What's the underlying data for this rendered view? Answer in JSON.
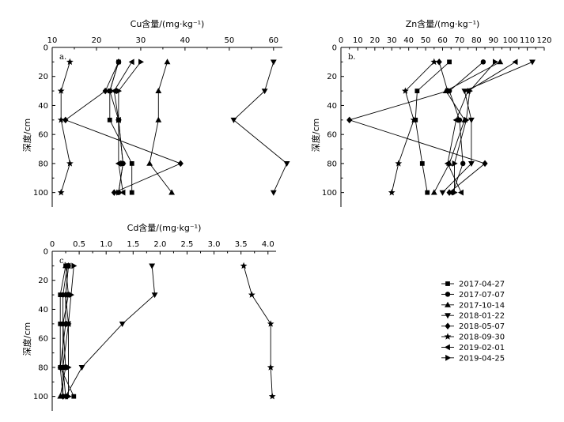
{
  "legend": [
    {
      "label": "2017-04-27",
      "marker": "square"
    },
    {
      "label": "2017-07-07",
      "marker": "circle"
    },
    {
      "label": "2017-10-14",
      "marker": "triangle-up"
    },
    {
      "label": "2018-01-22",
      "marker": "triangle-down"
    },
    {
      "label": "2018-05-07",
      "marker": "diamond"
    },
    {
      "label": "2018-09-30",
      "marker": "star"
    },
    {
      "label": "2019-02-01",
      "marker": "triangle-left"
    },
    {
      "label": "2019-04-25",
      "marker": "triangle-right"
    }
  ],
  "chart_data": [
    {
      "type": "line",
      "panel": "a.",
      "title": "Cu含量/(mg·kg⁻¹)",
      "ylabel": "深度/cm",
      "xlim": [
        10,
        62
      ],
      "ylim": [
        0,
        110
      ],
      "xticks": [
        10,
        20,
        30,
        40,
        50,
        60
      ],
      "yticks": [
        0,
        20,
        40,
        60,
        80,
        100
      ],
      "x_axis_position": "top",
      "depths": [
        10,
        30,
        50,
        80,
        100
      ],
      "series": [
        {
          "name": "2017-04-27",
          "values": [
            25,
            23,
            23,
            28,
            28
          ]
        },
        {
          "name": "2017-07-07",
          "values": [
            25,
            23,
            25,
            26,
            25
          ]
        },
        {
          "name": "2017-10-14",
          "values": [
            36,
            34,
            34,
            32,
            37
          ]
        },
        {
          "name": "2018-01-22",
          "values": [
            60,
            58,
            51,
            63,
            60
          ]
        },
        {
          "name": "2018-05-07",
          "values": [
            25,
            22,
            13,
            39,
            24
          ]
        },
        {
          "name": "2018-09-30",
          "values": [
            14,
            12,
            12,
            14,
            12
          ]
        },
        {
          "name": "2019-02-01",
          "values": [
            28,
            24,
            25,
            25,
            26
          ]
        },
        {
          "name": "2019-04-25",
          "values": [
            30,
            25,
            25,
            26,
            25
          ]
        }
      ]
    },
    {
      "type": "line",
      "panel": "b.",
      "title": "Zn含量/(mg·kg⁻¹)",
      "ylabel": "深度/cm",
      "xlim": [
        0,
        120
      ],
      "ylim": [
        0,
        110
      ],
      "xticks": [
        0,
        10,
        20,
        30,
        40,
        50,
        60,
        70,
        80,
        90,
        100,
        110,
        120
      ],
      "yticks": [
        0,
        20,
        40,
        60,
        80,
        100
      ],
      "x_axis_position": "top",
      "depths": [
        10,
        30,
        50,
        80,
        100
      ],
      "series": [
        {
          "name": "2017-04-27",
          "values": [
            64,
            45,
            44,
            48,
            51
          ]
        },
        {
          "name": "2017-07-07",
          "values": [
            84,
            64,
            70,
            72,
            66
          ]
        },
        {
          "name": "2017-10-14",
          "values": [
            94,
            62,
            73,
            64,
            55
          ]
        },
        {
          "name": "2018-01-22",
          "values": [
            113,
            73,
            77,
            77,
            60
          ]
        },
        {
          "name": "2018-05-07",
          "values": [
            58,
            63,
            5,
            85,
            64
          ]
        },
        {
          "name": "2018-09-30",
          "values": [
            55,
            38,
            43,
            34,
            30
          ]
        },
        {
          "name": "2019-02-01",
          "values": [
            103,
            75,
            68,
            63,
            71
          ]
        },
        {
          "name": "2019-04-25",
          "values": [
            91,
            76,
            74,
            67,
            67
          ]
        }
      ]
    },
    {
      "type": "line",
      "panel": "c.",
      "title": "Cd含量/(mg·kg⁻¹)",
      "ylabel": "深度/cm",
      "xlim": [
        0,
        4.15
      ],
      "ylim": [
        0,
        110
      ],
      "xticks": [
        0,
        0.5,
        1.0,
        1.5,
        2.0,
        2.5,
        3.0,
        3.5,
        4.0
      ],
      "xticklabels": [
        "0",
        "0.5",
        "1.0",
        "1.5",
        "2.0",
        "2.5",
        "3.0",
        "3.5",
        "4.0"
      ],
      "yticks": [
        0,
        20,
        40,
        60,
        80,
        100
      ],
      "x_axis_position": "top",
      "depths": [
        10,
        30,
        50,
        80,
        100
      ],
      "series": [
        {
          "name": "2017-04-27",
          "values": [
            0.25,
            0.15,
            0.15,
            0.15,
            0.4
          ]
        },
        {
          "name": "2017-07-07",
          "values": [
            0.28,
            0.2,
            0.2,
            0.2,
            0.2
          ]
        },
        {
          "name": "2017-10-14",
          "values": [
            0.25,
            0.3,
            0.2,
            0.25,
            0.15
          ]
        },
        {
          "name": "2018-01-22",
          "values": [
            1.85,
            1.9,
            1.3,
            0.55,
            0.25
          ]
        },
        {
          "name": "2018-05-07",
          "values": [
            0.3,
            0.25,
            0.25,
            0.15,
            0.2
          ]
        },
        {
          "name": "2018-09-30",
          "values": [
            3.55,
            3.7,
            4.05,
            4.05,
            4.08
          ]
        },
        {
          "name": "2019-02-01",
          "values": [
            0.3,
            0.25,
            0.3,
            0.2,
            0.25
          ]
        },
        {
          "name": "2019-04-25",
          "values": [
            0.4,
            0.35,
            0.3,
            0.3,
            0.3
          ]
        }
      ]
    }
  ]
}
